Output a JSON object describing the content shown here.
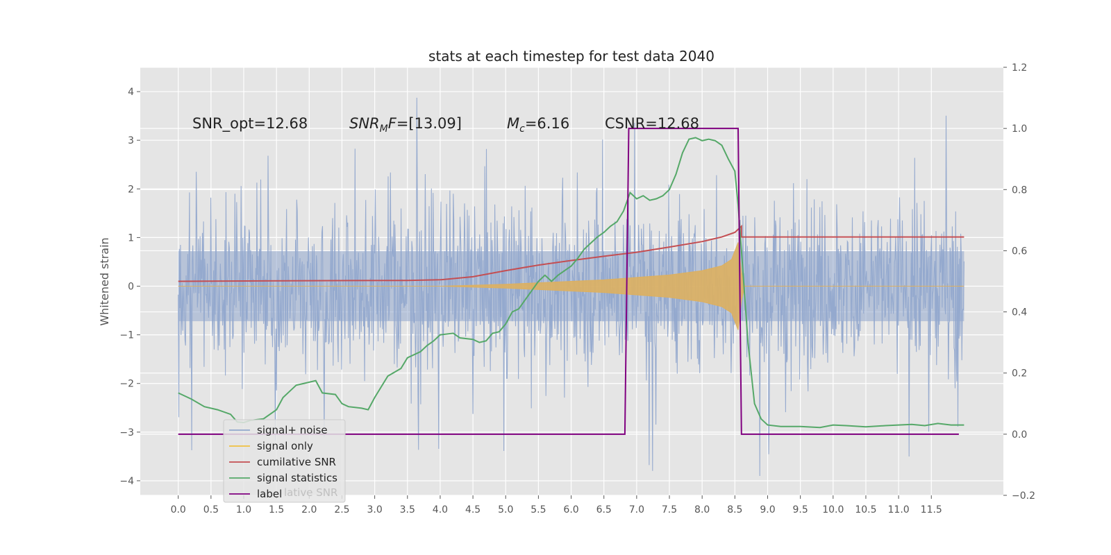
{
  "chart_data": {
    "type": "line",
    "title": "stats at each timestep for test data 2040",
    "ylabel": "Whitened strain",
    "xlabel": "",
    "xlim": [
      -0.58,
      12.6
    ],
    "ylim": [
      -4.3,
      4.5
    ],
    "y2lim": [
      -0.2,
      1.2
    ],
    "grid": true,
    "legend_position": "lower-left",
    "x_ticks": [
      "0.0",
      "0.5",
      "1.0",
      "1.5",
      "2.0",
      "2.5",
      "3.0",
      "3.5",
      "4.0",
      "4.5",
      "5.0",
      "5.5",
      "6.0",
      "6.5",
      "7.0",
      "7.5",
      "8.0",
      "8.5",
      "9.0",
      "9.5",
      "10.0",
      "10.5",
      "11.0",
      "11.5"
    ],
    "y_ticks": [
      4,
      3,
      2,
      1,
      0,
      -1,
      -2,
      -3,
      -4
    ],
    "y_tick_labels": [
      "4",
      "3",
      "2",
      "1",
      "0",
      "−1",
      "−2",
      "−3",
      "−4"
    ],
    "y2_ticks": [
      1.2,
      1.0,
      0.8,
      0.6,
      0.4,
      0.2,
      0.0,
      -0.2
    ],
    "y2_tick_labels": [
      "1.2",
      "1.0",
      "0.8",
      "0.6",
      "0.4",
      "0.2",
      "0.0",
      "−0.2"
    ],
    "annotations": {
      "snr_opt": "SNR_opt=12.68",
      "snr_mf_main": "SNR",
      "snr_mf_sub": "M",
      "snr_mf_rest": "F=[13.09]",
      "mc_main": "M",
      "mc_sub": "c",
      "mc_rest": "=6.16",
      "csnr": "CSNR=12.68"
    },
    "series": [
      {
        "name": "signal+ noise",
        "axis": "left",
        "color": "#92a8cd",
        "x_range": [
          0,
          12.0
        ],
        "envelope": {
          "typical_high": 2.0,
          "typical_low": -2.0,
          "max_peak": 4.1,
          "min_peak": -3.9
        }
      },
      {
        "name": "signal only",
        "axis": "left",
        "color": "#ddb060",
        "points": [
          [
            0,
            0
          ],
          [
            4.0,
            0
          ],
          [
            5.0,
            0.04
          ],
          [
            6.0,
            0.1
          ],
          [
            6.5,
            0.13
          ],
          [
            7.0,
            0.18
          ],
          [
            7.5,
            0.23
          ],
          [
            8.0,
            0.32
          ],
          [
            8.3,
            0.42
          ],
          [
            8.45,
            0.55
          ],
          [
            8.55,
            0.9
          ],
          [
            8.6,
            0.3
          ],
          [
            8.65,
            0
          ],
          [
            12.0,
            0
          ]
        ]
      },
      {
        "name": "cumilative SNR",
        "axis": "right",
        "color": "#c44e52",
        "points": [
          [
            0,
            0.5
          ],
          [
            2.0,
            0.502
          ],
          [
            3.5,
            0.503
          ],
          [
            4.0,
            0.505
          ],
          [
            4.5,
            0.515
          ],
          [
            5.0,
            0.535
          ],
          [
            5.5,
            0.553
          ],
          [
            6.0,
            0.568
          ],
          [
            6.5,
            0.582
          ],
          [
            7.0,
            0.595
          ],
          [
            7.5,
            0.612
          ],
          [
            8.0,
            0.63
          ],
          [
            8.3,
            0.645
          ],
          [
            8.5,
            0.66
          ],
          [
            8.6,
            0.68
          ],
          [
            8.6,
            0.645
          ],
          [
            12.0,
            0.645
          ]
        ]
      },
      {
        "name": "signal statistics",
        "axis": "right",
        "color": "#55a868",
        "points": [
          [
            0.0,
            0.135
          ],
          [
            0.2,
            0.115
          ],
          [
            0.4,
            0.09
          ],
          [
            0.6,
            0.08
          ],
          [
            0.8,
            0.065
          ],
          [
            0.9,
            0.04
          ],
          [
            1.0,
            0.038
          ],
          [
            1.1,
            0.045
          ],
          [
            1.3,
            0.05
          ],
          [
            1.5,
            0.08
          ],
          [
            1.6,
            0.12
          ],
          [
            1.7,
            0.14
          ],
          [
            1.8,
            0.16
          ],
          [
            1.9,
            0.165
          ],
          [
            2.1,
            0.175
          ],
          [
            2.2,
            0.135
          ],
          [
            2.4,
            0.13
          ],
          [
            2.5,
            0.1
          ],
          [
            2.6,
            0.09
          ],
          [
            2.8,
            0.085
          ],
          [
            2.9,
            0.08
          ],
          [
            3.0,
            0.12
          ],
          [
            3.2,
            0.19
          ],
          [
            3.4,
            0.215
          ],
          [
            3.5,
            0.25
          ],
          [
            3.7,
            0.27
          ],
          [
            3.8,
            0.29
          ],
          [
            3.9,
            0.305
          ],
          [
            4.0,
            0.325
          ],
          [
            4.2,
            0.33
          ],
          [
            4.3,
            0.315
          ],
          [
            4.5,
            0.31
          ],
          [
            4.6,
            0.3
          ],
          [
            4.7,
            0.305
          ],
          [
            4.8,
            0.33
          ],
          [
            4.9,
            0.335
          ],
          [
            5.0,
            0.36
          ],
          [
            5.1,
            0.4
          ],
          [
            5.2,
            0.41
          ],
          [
            5.3,
            0.44
          ],
          [
            5.4,
            0.47
          ],
          [
            5.5,
            0.5
          ],
          [
            5.6,
            0.52
          ],
          [
            5.7,
            0.5
          ],
          [
            5.8,
            0.52
          ],
          [
            6.0,
            0.55
          ],
          [
            6.1,
            0.575
          ],
          [
            6.2,
            0.605
          ],
          [
            6.3,
            0.625
          ],
          [
            6.4,
            0.645
          ],
          [
            6.5,
            0.66
          ],
          [
            6.6,
            0.68
          ],
          [
            6.7,
            0.695
          ],
          [
            6.8,
            0.73
          ],
          [
            6.9,
            0.79
          ],
          [
            7.0,
            0.77
          ],
          [
            7.1,
            0.78
          ],
          [
            7.2,
            0.765
          ],
          [
            7.3,
            0.77
          ],
          [
            7.4,
            0.78
          ],
          [
            7.5,
            0.8
          ],
          [
            7.6,
            0.85
          ],
          [
            7.7,
            0.92
          ],
          [
            7.8,
            0.965
          ],
          [
            7.9,
            0.97
          ],
          [
            8.0,
            0.96
          ],
          [
            8.1,
            0.965
          ],
          [
            8.2,
            0.96
          ],
          [
            8.3,
            0.945
          ],
          [
            8.4,
            0.9
          ],
          [
            8.5,
            0.86
          ],
          [
            8.55,
            0.75
          ],
          [
            8.6,
            0.6
          ],
          [
            8.7,
            0.3
          ],
          [
            8.8,
            0.1
          ],
          [
            8.9,
            0.05
          ],
          [
            9.0,
            0.03
          ],
          [
            9.2,
            0.025
          ],
          [
            9.5,
            0.025
          ],
          [
            9.8,
            0.022
          ],
          [
            10.0,
            0.03
          ],
          [
            10.2,
            0.028
          ],
          [
            10.5,
            0.024
          ],
          [
            10.8,
            0.028
          ],
          [
            11.0,
            0.03
          ],
          [
            11.2,
            0.032
          ],
          [
            11.4,
            0.028
          ],
          [
            11.6,
            0.035
          ],
          [
            11.8,
            0.03
          ],
          [
            12.0,
            0.03
          ]
        ]
      },
      {
        "name": "label",
        "axis": "right",
        "color": "#800080",
        "points": [
          [
            0,
            0.0
          ],
          [
            6.82,
            0.0
          ],
          [
            6.88,
            1.0
          ],
          [
            8.55,
            1.0
          ],
          [
            8.6,
            0.0
          ],
          [
            11.92,
            0.0
          ]
        ]
      }
    ],
    "legend_ghost": "lative SNR"
  }
}
